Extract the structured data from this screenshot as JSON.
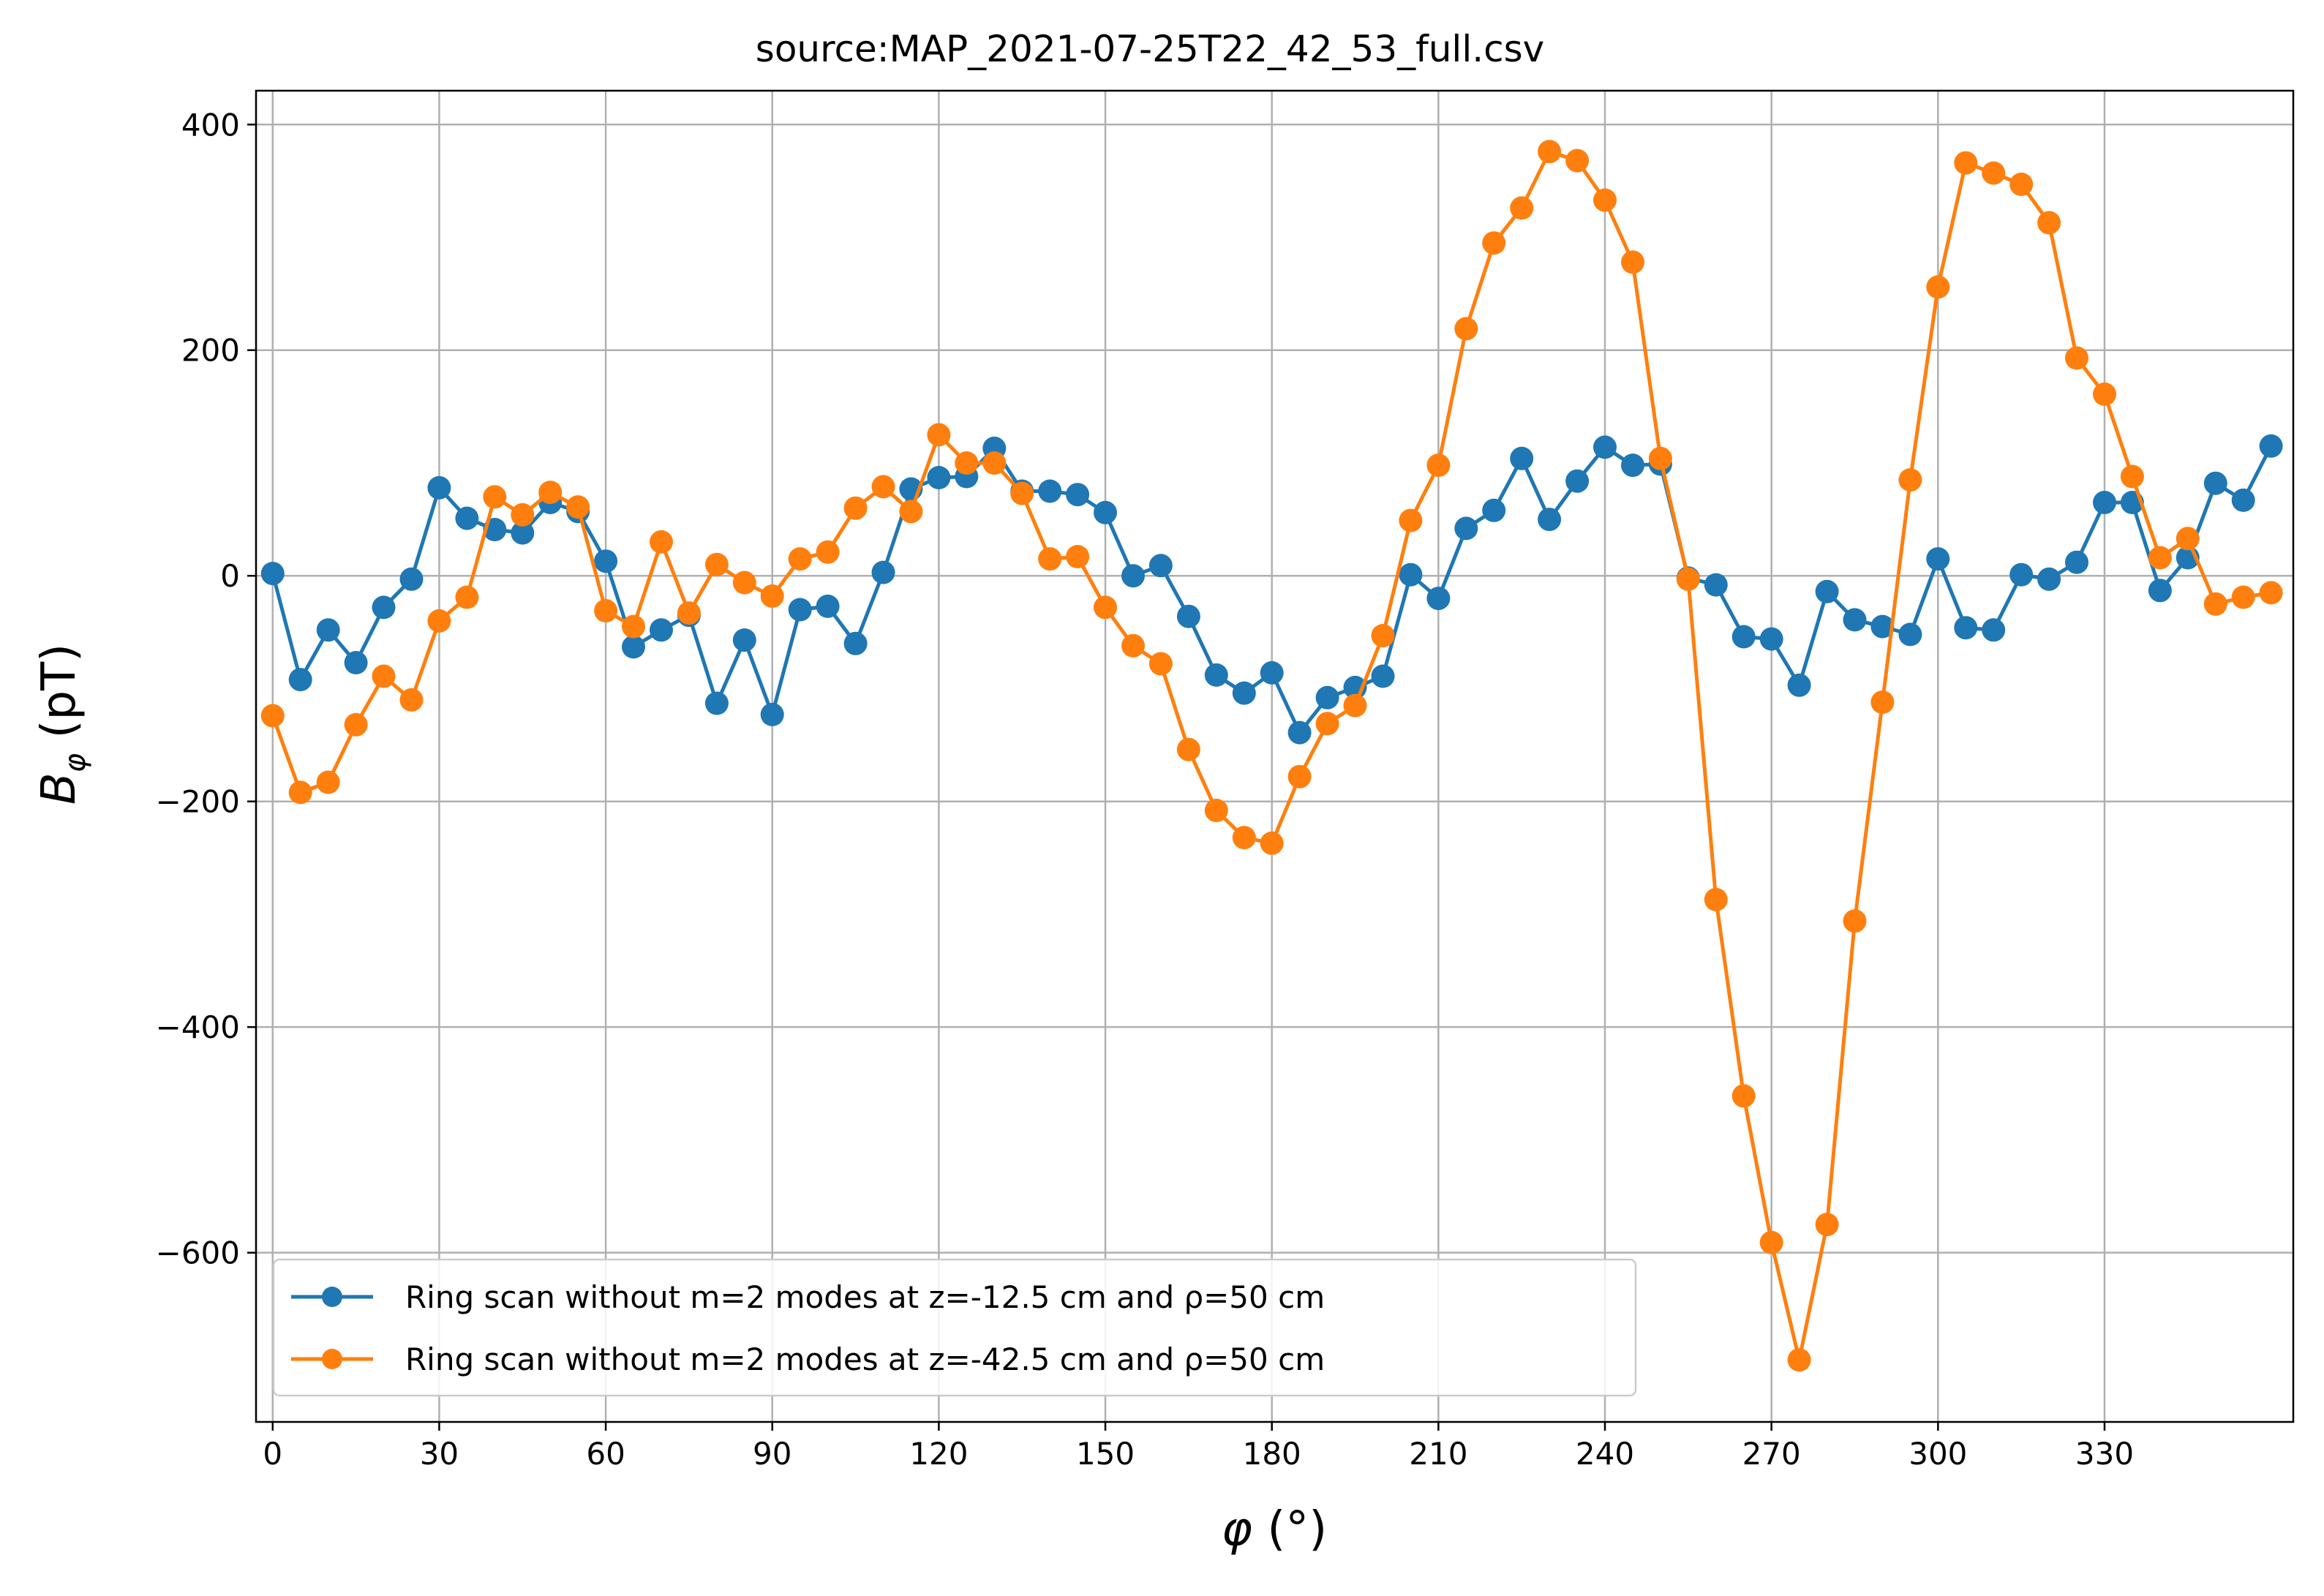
{
  "chart_data": {
    "type": "line",
    "title": "source:MAP_2021-07-25T22_42_53_full.csv",
    "xlabel": {
      "symbol": "φ",
      "unit": " (°)"
    },
    "ylabel": {
      "symbol": "B",
      "subscript": "φ",
      "unit": " (pT)"
    },
    "xlim": [
      -3,
      364
    ],
    "ylim": [
      -750,
      430
    ],
    "xticks": [
      0,
      30,
      60,
      90,
      120,
      150,
      180,
      210,
      240,
      270,
      300,
      330
    ],
    "yticks": [
      -600,
      -400,
      -200,
      0,
      200,
      400
    ],
    "ytick_labels": [
      "−600",
      "−400",
      "−200",
      "0",
      "200",
      "400"
    ],
    "grid": true,
    "legend_position": "lower-left",
    "x": [
      0,
      5,
      10,
      15,
      20,
      25,
      30,
      35,
      40,
      45,
      50,
      55,
      60,
      65,
      70,
      75,
      80,
      85,
      90,
      95,
      100,
      105,
      110,
      115,
      120,
      125,
      130,
      135,
      140,
      145,
      150,
      155,
      160,
      165,
      170,
      175,
      180,
      185,
      190,
      195,
      200,
      205,
      210,
      215,
      220,
      225,
      230,
      235,
      240,
      245,
      250,
      255,
      260,
      265,
      270,
      275,
      280,
      285,
      290,
      295,
      300,
      305,
      310,
      315,
      320,
      325,
      330,
      335,
      340,
      345,
      350,
      355,
      360
    ],
    "series": [
      {
        "name": "Ring scan without m=2 modes at z=-12.5 cm and ρ=50 cm",
        "color": "#1f77b4",
        "values": [
          2,
          -92,
          -48,
          -77,
          -28,
          -3,
          78,
          51,
          41,
          38,
          65,
          57,
          13,
          -63,
          -48,
          -35,
          -113,
          -57,
          -123,
          -30,
          -27,
          -60,
          3,
          77,
          87,
          88,
          113,
          75,
          75,
          72,
          56,
          0,
          9,
          -36,
          -88,
          -104,
          -86,
          -139,
          -108,
          -99,
          -89,
          1,
          -20,
          42,
          58,
          104,
          50,
          84,
          114,
          98,
          99,
          -2,
          -8,
          -54,
          -56,
          -97,
          -14,
          -39,
          -45,
          -52,
          15,
          -46,
          -48,
          1,
          -3,
          12,
          65,
          65,
          -13,
          16,
          82,
          67,
          115
        ]
      },
      {
        "name": "Ring scan without m=2 modes at z=-42.5 cm and ρ=50 cm",
        "color": "#ff7f0e",
        "values": [
          -124,
          -192,
          -183,
          -132,
          -89,
          -110,
          -40,
          -19,
          70,
          54,
          74,
          61,
          -31,
          -45,
          30,
          -33,
          10,
          -6,
          -18,
          15,
          21,
          60,
          79,
          57,
          125,
          100,
          100,
          73,
          15,
          17,
          -28,
          -62,
          -78,
          -154,
          -208,
          -232,
          -237,
          -178,
          -131,
          -115,
          -53,
          49,
          98,
          219,
          295,
          326,
          376,
          368,
          333,
          278,
          104,
          -3,
          -287,
          -461,
          -591,
          -695,
          -575,
          -306,
          -112,
          85,
          256,
          366,
          357,
          347,
          313,
          193,
          161,
          88,
          16,
          33,
          -25,
          -19,
          -15
        ]
      }
    ]
  }
}
